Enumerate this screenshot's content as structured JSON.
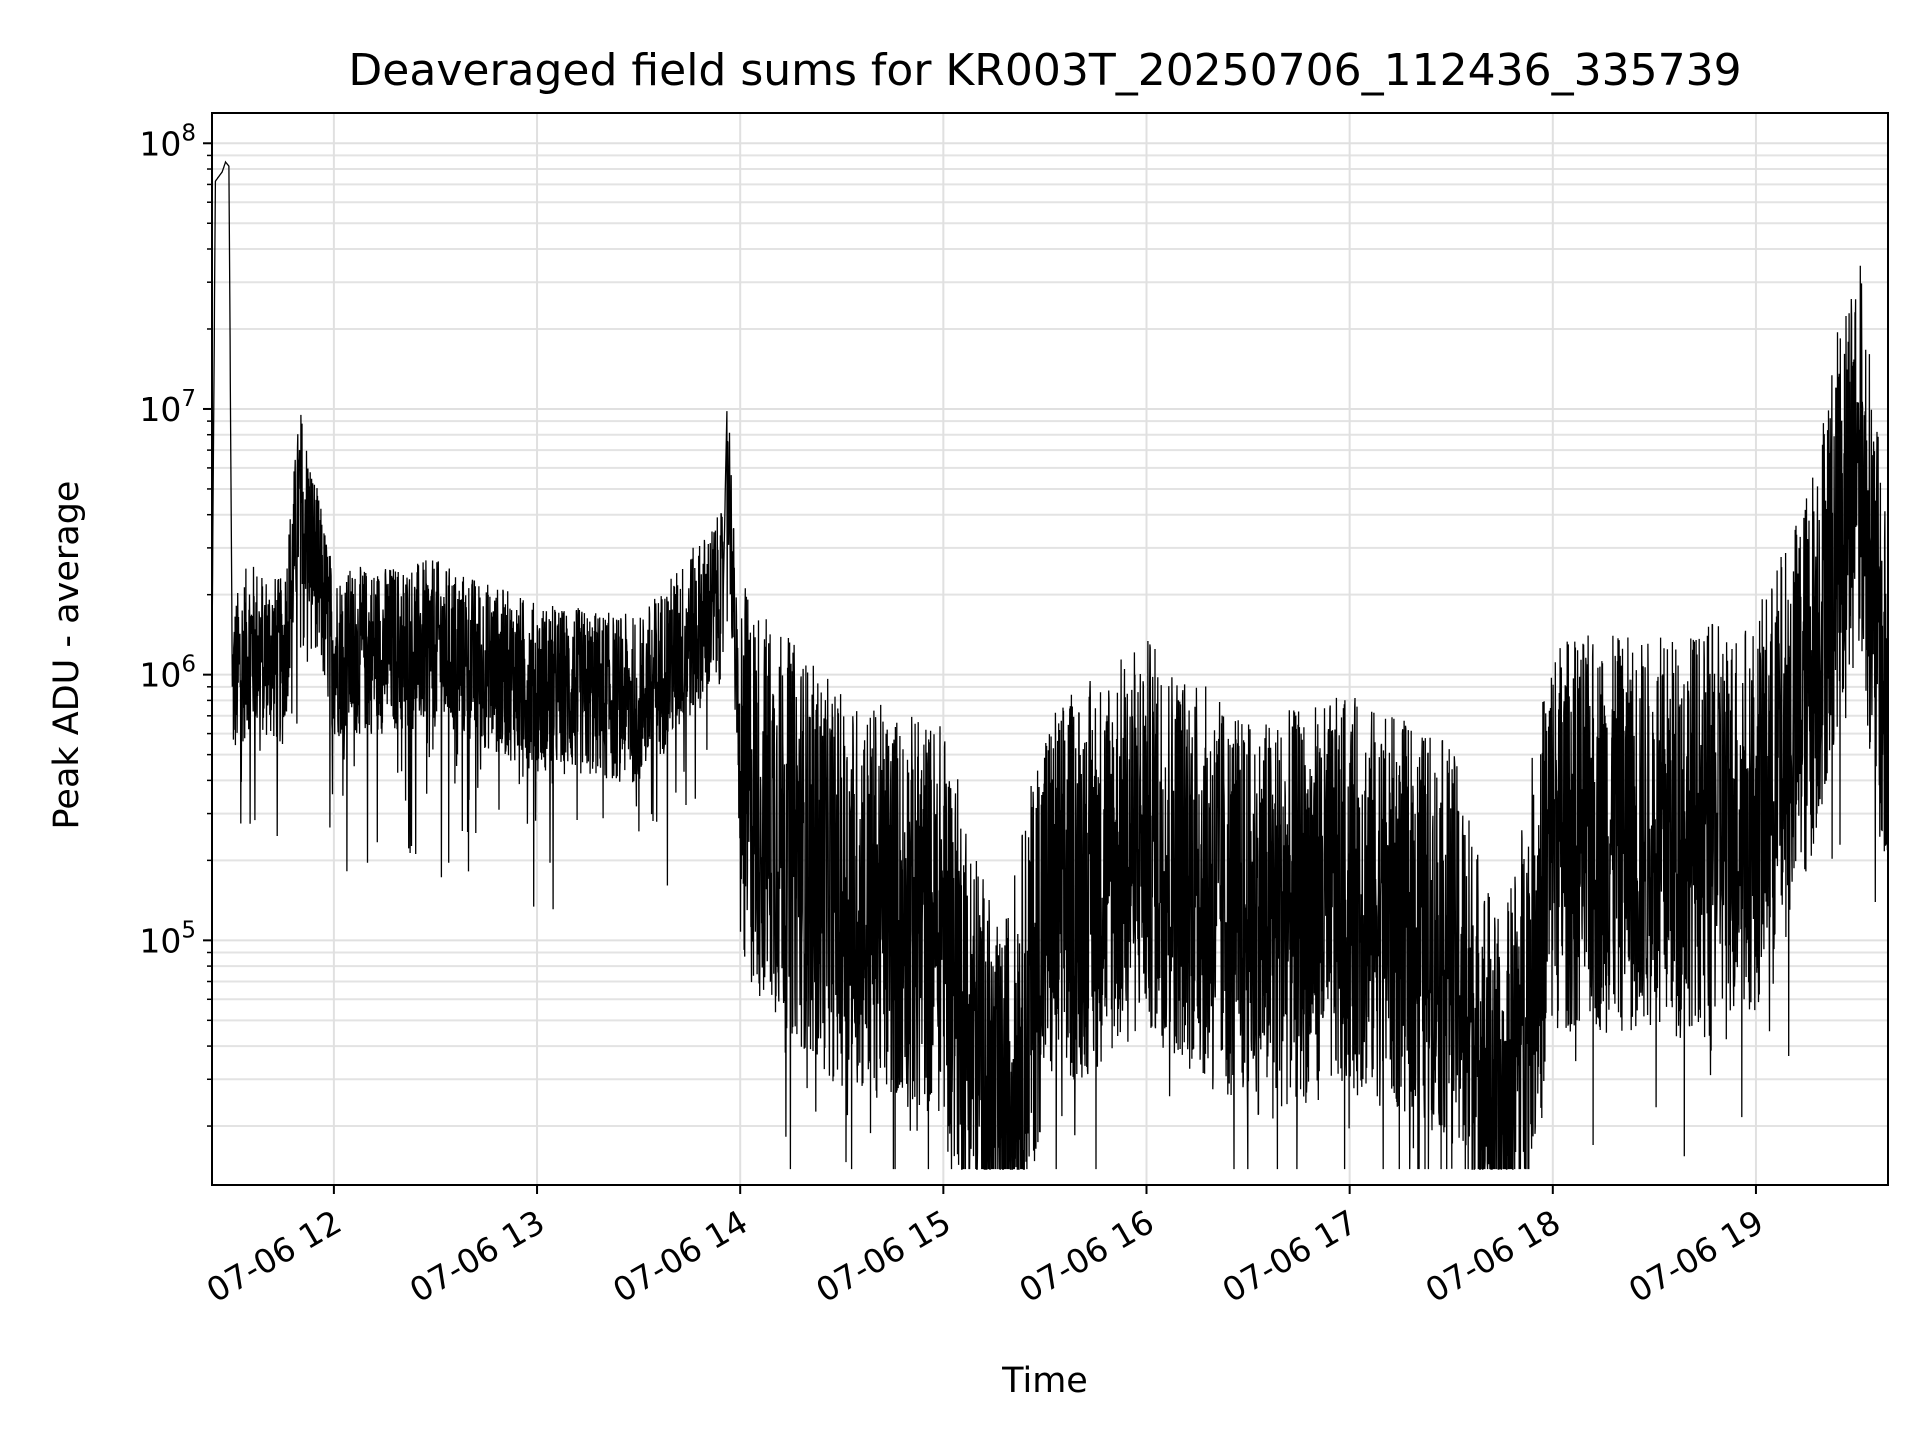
{
  "chart_data": {
    "type": "line",
    "title": "Deaveraged field sums for KR003T_20250706_112436_335739",
    "xlabel": "Time",
    "ylabel": "Peak ADU - average",
    "x_axis": {
      "kind": "time",
      "range": [
        "2025-07-06 11:24",
        "2025-07-06 19:39"
      ],
      "ticks": [
        "2025-07-06 12:00",
        "2025-07-06 13:00",
        "2025-07-06 14:00",
        "2025-07-06 15:00",
        "2025-07-06 16:00",
        "2025-07-06 17:00",
        "2025-07-06 18:00",
        "2025-07-06 19:00"
      ],
      "tick_labels": [
        "07-06 12",
        "07-06 13",
        "07-06 14",
        "07-06 15",
        "07-06 16",
        "07-06 17",
        "07-06 18",
        "07-06 19"
      ],
      "tick_label_rotation": "30deg"
    },
    "y_axis": {
      "scale": "log",
      "range": [
        12000,
        130000000
      ],
      "major_ticks": [
        100000,
        1000000,
        10000000,
        100000000
      ],
      "tick_labels": [
        {
          "base": "10",
          "exp": "5"
        },
        {
          "base": "10",
          "exp": "6"
        },
        {
          "base": "10",
          "exp": "7"
        },
        {
          "base": "10",
          "exp": "8"
        }
      ]
    },
    "grid": true,
    "minor_grid": true,
    "legend": "none",
    "series": [
      {
        "color": "#000000",
        "points": [
          [
            "2025-07-06 11:24",
            1200000
          ],
          [
            "2025-07-06 11:25",
            72000000
          ],
          [
            "2025-07-06 11:27",
            78000000
          ],
          [
            "2025-07-06 11:28",
            85000000
          ],
          [
            "2025-07-06 11:29",
            82000000
          ],
          [
            "2025-07-06 11:30",
            900000
          ],
          [
            "2025-07-06 11:35",
            1300000
          ],
          [
            "2025-07-06 11:45",
            1100000
          ],
          [
            "2025-07-06 11:50",
            5000000
          ],
          [
            "2025-07-06 12:00",
            1200000
          ],
          [
            "2025-07-06 12:30",
            1300000
          ],
          [
            "2025-07-06 13:00",
            900000
          ],
          [
            "2025-07-06 13:30",
            800000
          ],
          [
            "2025-07-06 13:55",
            2000000
          ],
          [
            "2025-07-06 13:56",
            9000000
          ],
          [
            "2025-07-06 14:00",
            400000
          ],
          [
            "2025-07-06 14:30",
            150000
          ],
          [
            "2025-07-06 15:00",
            120000
          ],
          [
            "2025-07-06 15:17",
            18000
          ],
          [
            "2025-07-06 15:30",
            130000
          ],
          [
            "2025-07-06 16:00",
            250000
          ],
          [
            "2025-07-06 16:30",
            120000
          ],
          [
            "2025-07-06 17:00",
            150000
          ],
          [
            "2025-07-06 17:30",
            100000
          ],
          [
            "2025-07-06 17:45",
            19000
          ],
          [
            "2025-07-06 18:00",
            250000
          ],
          [
            "2025-07-06 18:30",
            250000
          ],
          [
            "2025-07-06 19:00",
            300000
          ],
          [
            "2025-07-06 19:15",
            900000
          ],
          [
            "2025-07-06 19:30",
            8500000
          ],
          [
            "2025-07-06 19:39",
            600000
          ]
        ]
      }
    ]
  }
}
